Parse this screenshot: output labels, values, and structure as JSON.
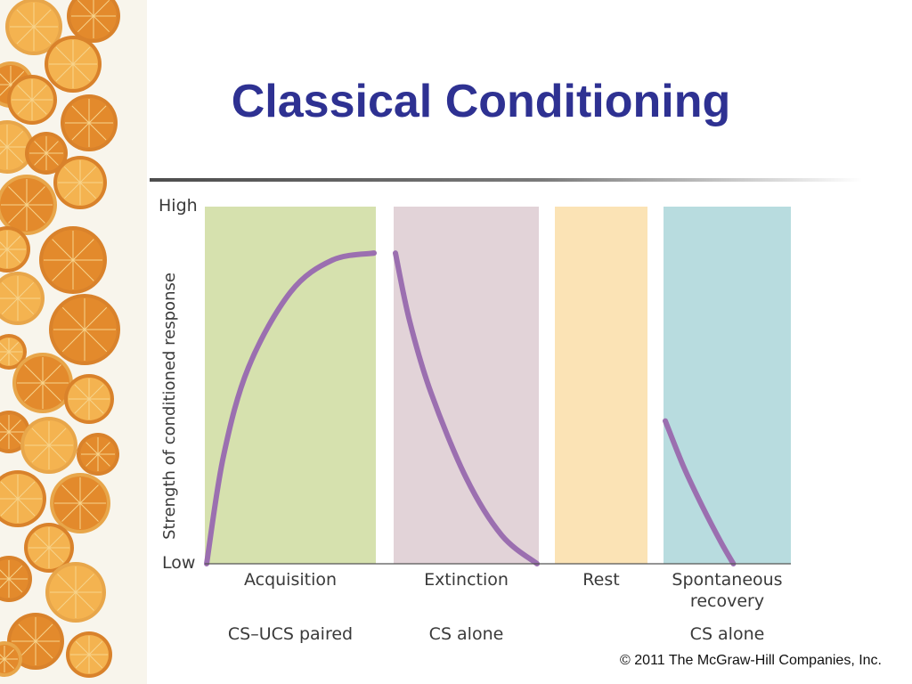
{
  "slide": {
    "title": "Classical Conditioning",
    "copyright": "© 2011 The McGraw-Hill Companies, Inc."
  },
  "colors": {
    "title": "#2e3192",
    "curve": "#9b6fb0",
    "acquisition": "#d6e1ae",
    "extinction": "#e2d3d8",
    "rest": "#fbe3b5",
    "spontaneous_recovery": "#b8dcdf"
  },
  "chart_data": {
    "type": "line",
    "ylabel": "Strength of conditioned response",
    "y_tick_labels": {
      "high": "High",
      "low": "Low"
    },
    "ylim": [
      0,
      1
    ],
    "phases": [
      {
        "key": "acquisition",
        "label": "Acquisition",
        "sublabel": "CS–UCS paired",
        "color": "#d6e1ae"
      },
      {
        "key": "extinction",
        "label": "Extinction",
        "sublabel": "CS alone",
        "color": "#e2d3d8"
      },
      {
        "key": "rest",
        "label": "Rest",
        "sublabel": "",
        "color": "#fbe3b5"
      },
      {
        "key": "spontaneous_recovery",
        "label": "Spontaneous recovery",
        "sublabel": "CS alone",
        "color": "#b8dcdf"
      }
    ],
    "series": [
      {
        "phase": "acquisition",
        "points": [
          [
            0,
            0.0
          ],
          [
            0.1,
            0.3
          ],
          [
            0.25,
            0.55
          ],
          [
            0.5,
            0.76
          ],
          [
            0.75,
            0.85
          ],
          [
            1.0,
            0.87
          ]
        ]
      },
      {
        "phase": "extinction",
        "points": [
          [
            0,
            0.87
          ],
          [
            0.1,
            0.68
          ],
          [
            0.25,
            0.48
          ],
          [
            0.5,
            0.24
          ],
          [
            0.75,
            0.08
          ],
          [
            1.0,
            0.0
          ]
        ]
      },
      {
        "phase": "spontaneous_recovery",
        "points": [
          [
            0,
            0.4
          ],
          [
            0.15,
            0.27
          ],
          [
            0.3,
            0.16
          ],
          [
            0.45,
            0.06
          ],
          [
            0.55,
            0.0
          ]
        ]
      }
    ],
    "grid": false,
    "legend": "none"
  }
}
